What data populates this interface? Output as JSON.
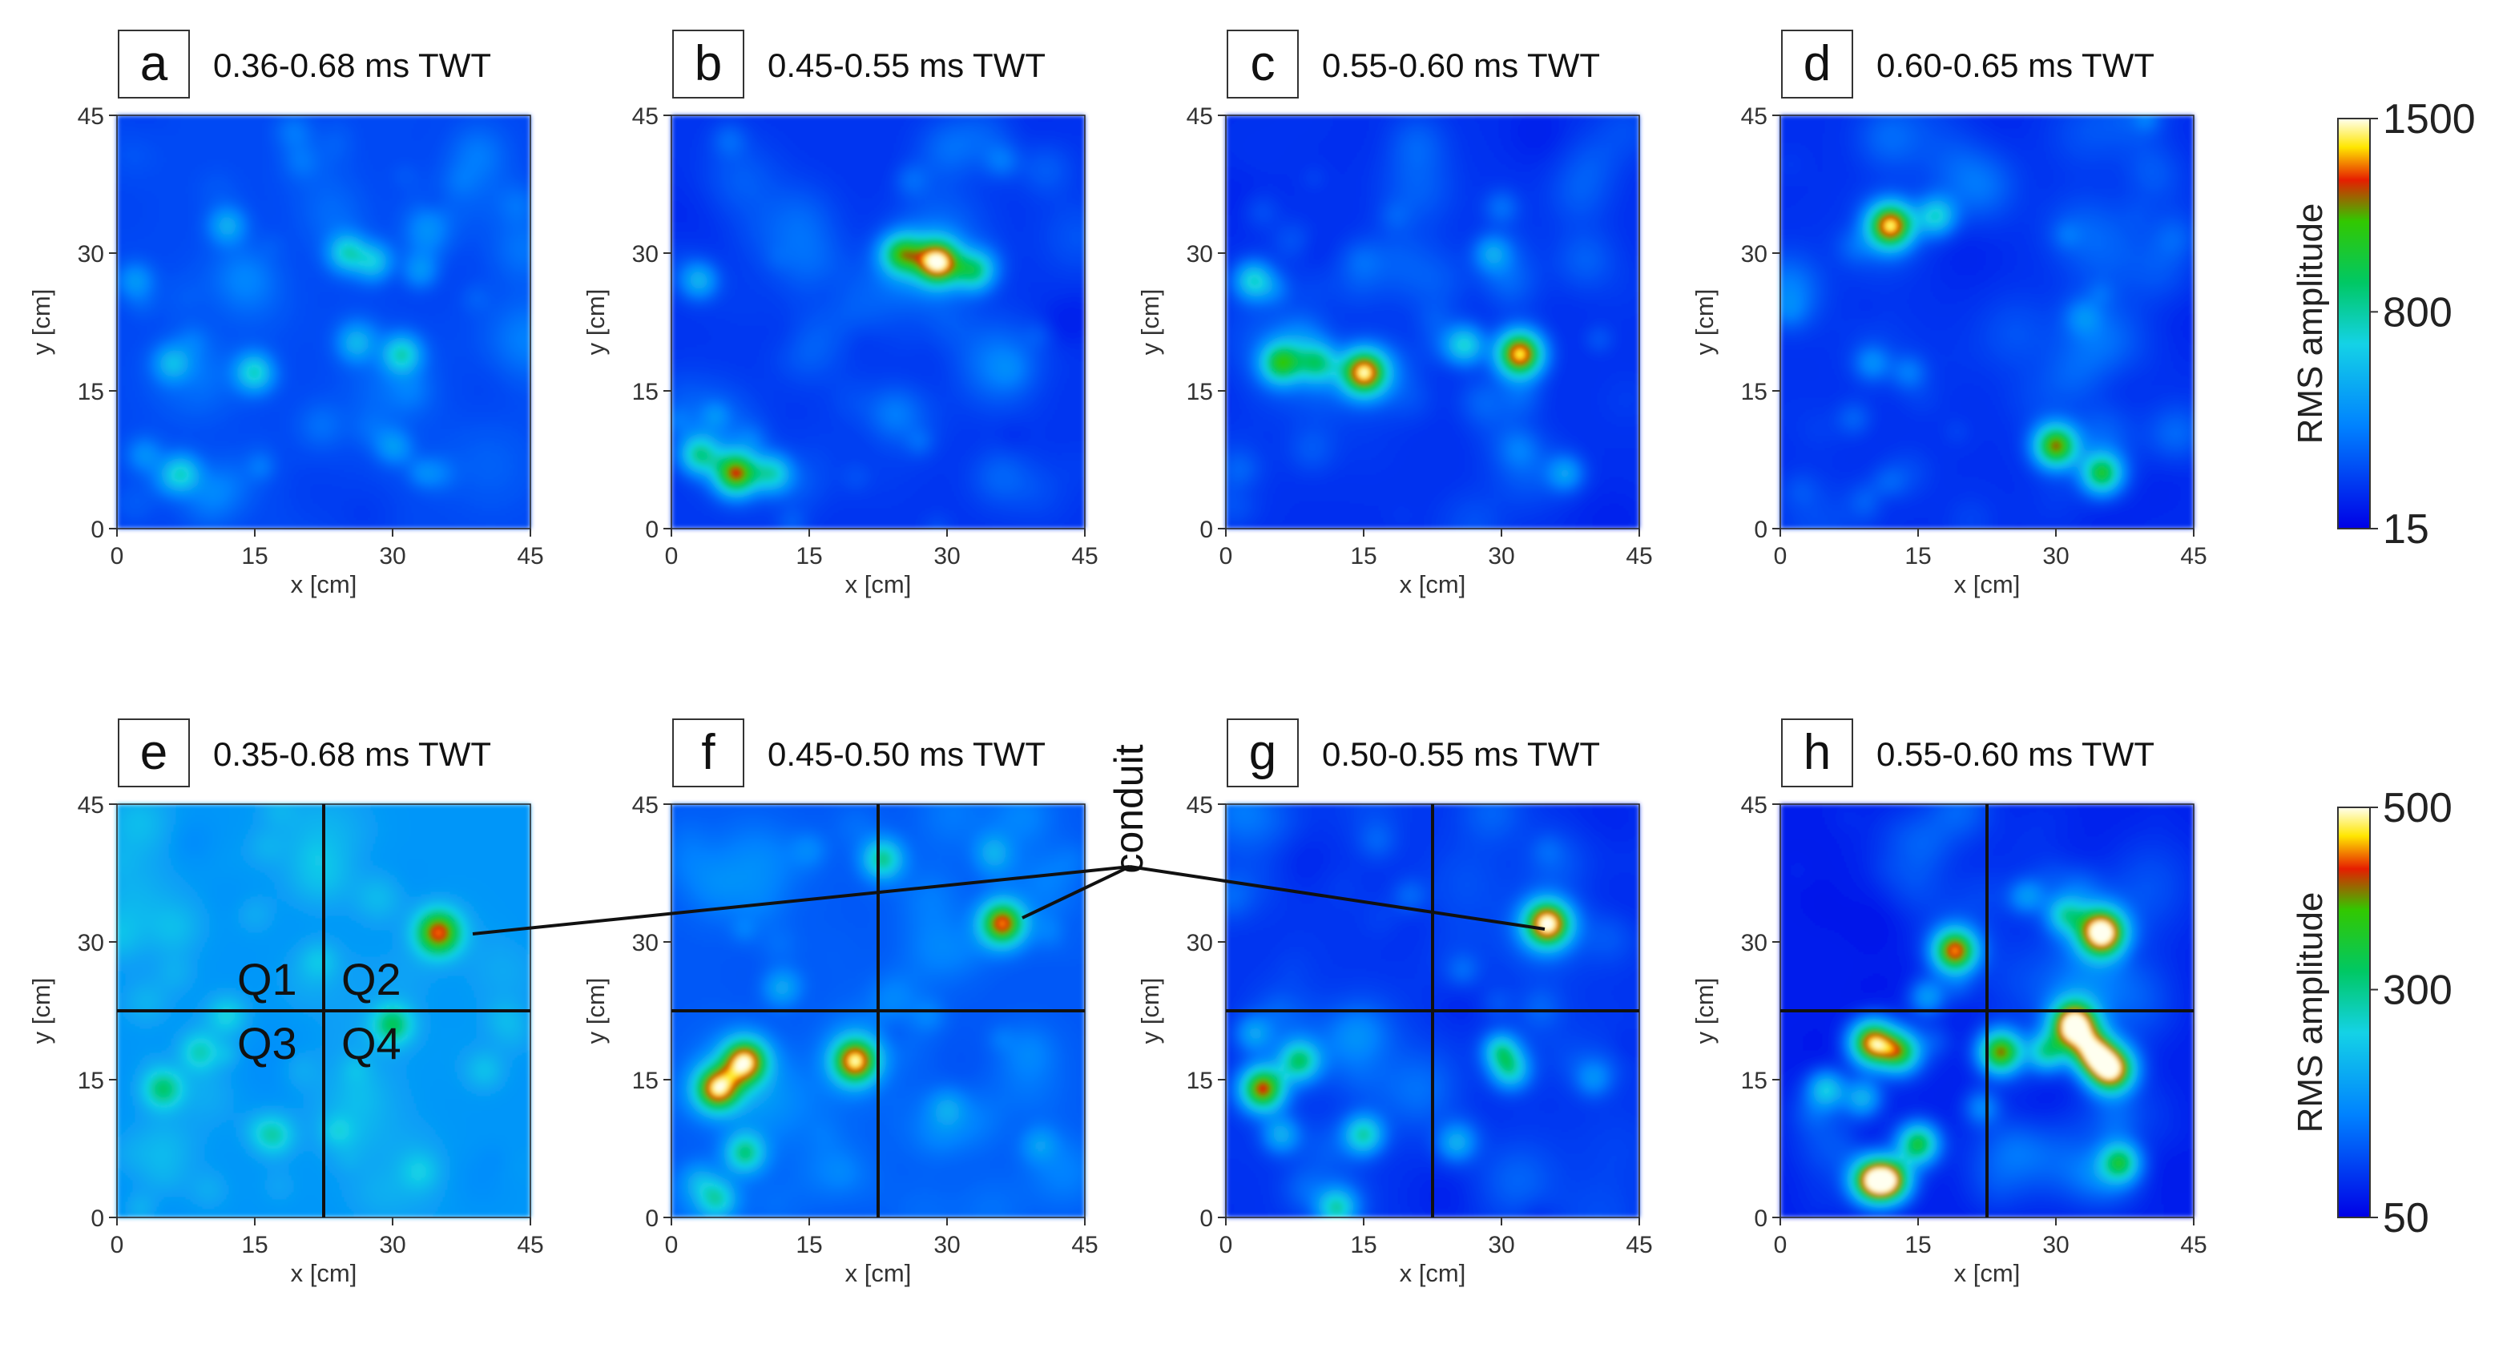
{
  "chart_data": {
    "type": "heatmap",
    "axis": {
      "xlabel": "x [cm]",
      "ylabel": "y [cm]",
      "xlim": [
        0,
        45
      ],
      "ylim": [
        0,
        45
      ],
      "ticks": [
        "0",
        "15",
        "30",
        "45"
      ],
      "tick_values": [
        0,
        15,
        30,
        45
      ]
    },
    "colorbars": [
      {
        "label": "RMS amplitude",
        "ticks": [
          "1500",
          "800",
          "15"
        ],
        "min": 15,
        "mid": 800,
        "max": 1500
      },
      {
        "label": "RMS amplitude",
        "ticks": [
          "500",
          "300",
          "50"
        ],
        "min": 50,
        "mid": 300,
        "max": 500
      }
    ],
    "annotation": {
      "text": "conduit"
    },
    "quadrant_labels": [
      "Q1",
      "Q2",
      "Q3",
      "Q4"
    ],
    "panels": [
      {
        "letter": "a",
        "title": "0.36-0.68 ms TWT",
        "colorbar": 0,
        "background": 0.14,
        "blobs": [
          [
            12,
            33,
            0.35
          ],
          [
            25,
            30,
            0.45
          ],
          [
            28,
            29,
            0.42
          ],
          [
            33,
            28,
            0.3
          ],
          [
            2,
            27,
            0.3
          ],
          [
            6,
            18,
            0.35
          ],
          [
            15,
            17,
            0.48
          ],
          [
            31,
            19,
            0.48
          ],
          [
            26,
            20,
            0.3
          ],
          [
            7,
            6,
            0.45
          ],
          [
            3,
            8,
            0.28
          ],
          [
            30,
            9,
            0.3
          ],
          [
            35,
            6,
            0.22
          ],
          [
            20,
            40,
            0.2
          ]
        ]
      },
      {
        "letter": "b",
        "title": "0.45-0.55 ms TWT",
        "colorbar": 0,
        "background": 0.1,
        "blobs": [
          [
            25,
            30,
            0.6
          ],
          [
            29,
            29,
            0.9
          ],
          [
            33,
            28,
            0.5
          ],
          [
            3,
            27,
            0.35
          ],
          [
            7,
            6,
            0.8
          ],
          [
            3,
            8,
            0.5
          ],
          [
            11,
            6,
            0.45
          ],
          [
            26,
            38,
            0.2
          ],
          [
            36,
            40,
            0.2
          ]
        ]
      },
      {
        "letter": "c",
        "title": "0.55-0.60 ms TWT",
        "colorbar": 0,
        "background": 0.09,
        "blobs": [
          [
            3,
            27,
            0.45
          ],
          [
            6,
            18,
            0.6
          ],
          [
            10,
            18,
            0.45
          ],
          [
            15,
            17,
            0.88
          ],
          [
            26,
            20,
            0.45
          ],
          [
            32,
            19,
            0.95
          ],
          [
            29,
            30,
            0.3
          ],
          [
            37,
            6,
            0.3
          ],
          [
            30,
            35,
            0.2
          ]
        ]
      },
      {
        "letter": "d",
        "title": "0.60-0.65 ms TWT",
        "colorbar": 0,
        "background": 0.09,
        "blobs": [
          [
            12,
            33,
            0.9
          ],
          [
            17,
            34,
            0.45
          ],
          [
            10,
            18,
            0.25
          ],
          [
            14,
            17,
            0.22
          ],
          [
            30,
            9,
            0.8
          ],
          [
            35,
            6,
            0.65
          ],
          [
            33,
            23,
            0.2
          ],
          [
            8,
            12,
            0.18
          ]
        ]
      },
      {
        "letter": "e",
        "title": "0.35-0.68 ms TWT",
        "colorbar": 1,
        "background": 0.3,
        "quadrants": true,
        "blobs": [
          [
            35,
            31,
            0.88
          ],
          [
            30,
            21,
            0.6
          ],
          [
            5,
            14,
            0.6
          ],
          [
            17,
            9,
            0.52
          ],
          [
            9,
            18,
            0.5
          ],
          [
            12,
            22,
            0.45
          ],
          [
            22,
            28,
            0.4
          ],
          [
            33,
            5,
            0.4
          ],
          [
            10,
            3,
            0.35
          ],
          [
            40,
            16,
            0.4
          ],
          [
            20,
            16,
            0.35
          ],
          [
            3,
            30,
            0.3
          ],
          [
            28,
            35,
            0.3
          ],
          [
            40,
            38,
            0.3
          ],
          [
            15,
            33,
            0.35
          ],
          [
            25,
            10,
            0.3
          ]
        ]
      },
      {
        "letter": "f",
        "title": "0.45-0.50 ms TWT",
        "colorbar": 1,
        "background": 0.17,
        "quadrants": true,
        "blobs": [
          [
            36,
            32,
            0.88
          ],
          [
            5,
            14,
            0.88
          ],
          [
            8,
            17,
            0.9
          ],
          [
            20,
            17,
            0.92
          ],
          [
            8,
            7,
            0.55
          ],
          [
            23,
            39,
            0.55
          ],
          [
            3,
            4,
            0.3
          ],
          [
            5,
            2,
            0.45
          ],
          [
            12,
            25,
            0.35
          ],
          [
            30,
            12,
            0.3
          ],
          [
            40,
            8,
            0.3
          ],
          [
            35,
            40,
            0.3
          ],
          [
            15,
            40,
            0.25
          ],
          [
            28,
            22,
            0.25
          ]
        ]
      },
      {
        "letter": "g",
        "title": "0.50-0.55 ms TWT",
        "colorbar": 1,
        "background": 0.1,
        "quadrants": true,
        "blobs": [
          [
            35,
            32,
            0.95
          ],
          [
            4,
            14,
            0.85
          ],
          [
            8,
            17,
            0.55
          ],
          [
            15,
            9,
            0.5
          ],
          [
            12,
            1,
            0.45
          ],
          [
            30,
            18,
            0.4
          ],
          [
            31,
            16,
            0.45
          ],
          [
            6,
            9,
            0.35
          ],
          [
            25,
            8,
            0.3
          ],
          [
            40,
            15,
            0.25
          ],
          [
            20,
            35,
            0.2
          ],
          [
            3,
            20,
            0.3
          ]
        ]
      },
      {
        "letter": "h",
        "title": "0.55-0.60 ms TWT",
        "colorbar": 1,
        "background": 0.06,
        "quadrants": true,
        "blobs": [
          [
            35,
            31,
            1.0
          ],
          [
            32,
            21,
            1.0
          ],
          [
            36,
            16,
            0.95
          ],
          [
            34,
            18,
            0.8
          ],
          [
            19,
            29,
            0.85
          ],
          [
            10,
            19,
            0.88
          ],
          [
            13,
            18,
            0.6
          ],
          [
            24,
            18,
            0.8
          ],
          [
            10,
            4,
            0.85
          ],
          [
            12,
            4,
            0.75
          ],
          [
            15,
            8,
            0.65
          ],
          [
            37,
            6,
            0.55
          ],
          [
            29,
            18,
            0.5
          ],
          [
            5,
            14,
            0.4
          ],
          [
            9,
            13,
            0.35
          ],
          [
            16,
            24,
            0.3
          ],
          [
            27,
            35,
            0.25
          ],
          [
            31,
            33,
            0.4
          ],
          [
            22,
            12,
            0.25
          ]
        ]
      }
    ]
  }
}
